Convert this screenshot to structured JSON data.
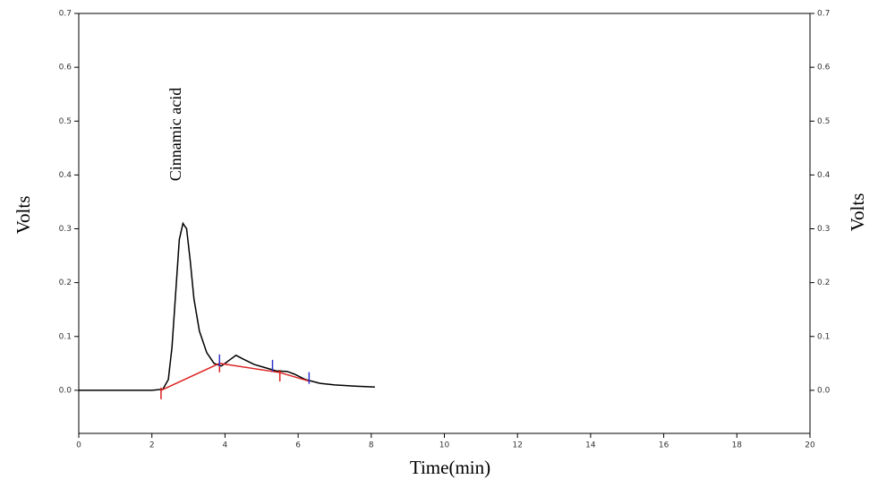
{
  "chart_data": {
    "type": "line",
    "xlabel": "Time(min)",
    "ylabel": "Volts",
    "y2label": "Volts",
    "annotation": "Cinnamic acid",
    "xlim": [
      0,
      20
    ],
    "xticks": [
      0,
      2,
      4,
      6,
      8,
      10,
      12,
      14,
      16,
      18,
      20
    ],
    "ylim": [
      -0.08,
      0.7
    ],
    "yticks": [
      {
        "value": 0,
        "label": "0.0"
      },
      0.1,
      0.2,
      0.3,
      0.4,
      0.5,
      0.6,
      0.7
    ],
    "y2lim": [
      -0.08,
      0.7
    ],
    "y2ticks": [
      {
        "value": 0,
        "label": "0.0"
      },
      0.1,
      0.2,
      0.3,
      0.4,
      0.5,
      0.6,
      0.7
    ],
    "series": [
      {
        "color": "#000000",
        "x": [
          0,
          2.0,
          2.3,
          2.45,
          2.55,
          2.65,
          2.75,
          2.85,
          2.95,
          3.05,
          3.15,
          3.3,
          3.5,
          3.7,
          3.9,
          4.1,
          4.3,
          4.5,
          4.8,
          5.1,
          5.4,
          5.7,
          5.9,
          6.2,
          6.6,
          7.0,
          7.5,
          8.1
        ],
        "values": [
          0,
          0,
          0.002,
          0.02,
          0.08,
          0.18,
          0.28,
          0.31,
          0.3,
          0.24,
          0.17,
          0.11,
          0.07,
          0.05,
          0.045,
          0.055,
          0.065,
          0.058,
          0.048,
          0.042,
          0.036,
          0.035,
          0.03,
          0.02,
          0.013,
          0.01,
          0.008,
          0.006
        ]
      },
      {
        "color": "#dd2222",
        "x": [
          2.25,
          3.85,
          5.5,
          6.3
        ],
        "values": [
          0,
          0.05,
          0.033,
          0.017
        ]
      }
    ],
    "peak_marks": [
      {
        "color": "#dd2222",
        "x": [
          2.25,
          3.85,
          5.5
        ],
        "values": [
          0,
          0.05,
          0.033
        ],
        "direction": "down"
      },
      {
        "color": "#3333cc",
        "x": [
          3.85,
          5.3,
          6.3
        ],
        "values": [
          0.05,
          0.04,
          0.017
        ],
        "direction": "up"
      }
    ]
  }
}
